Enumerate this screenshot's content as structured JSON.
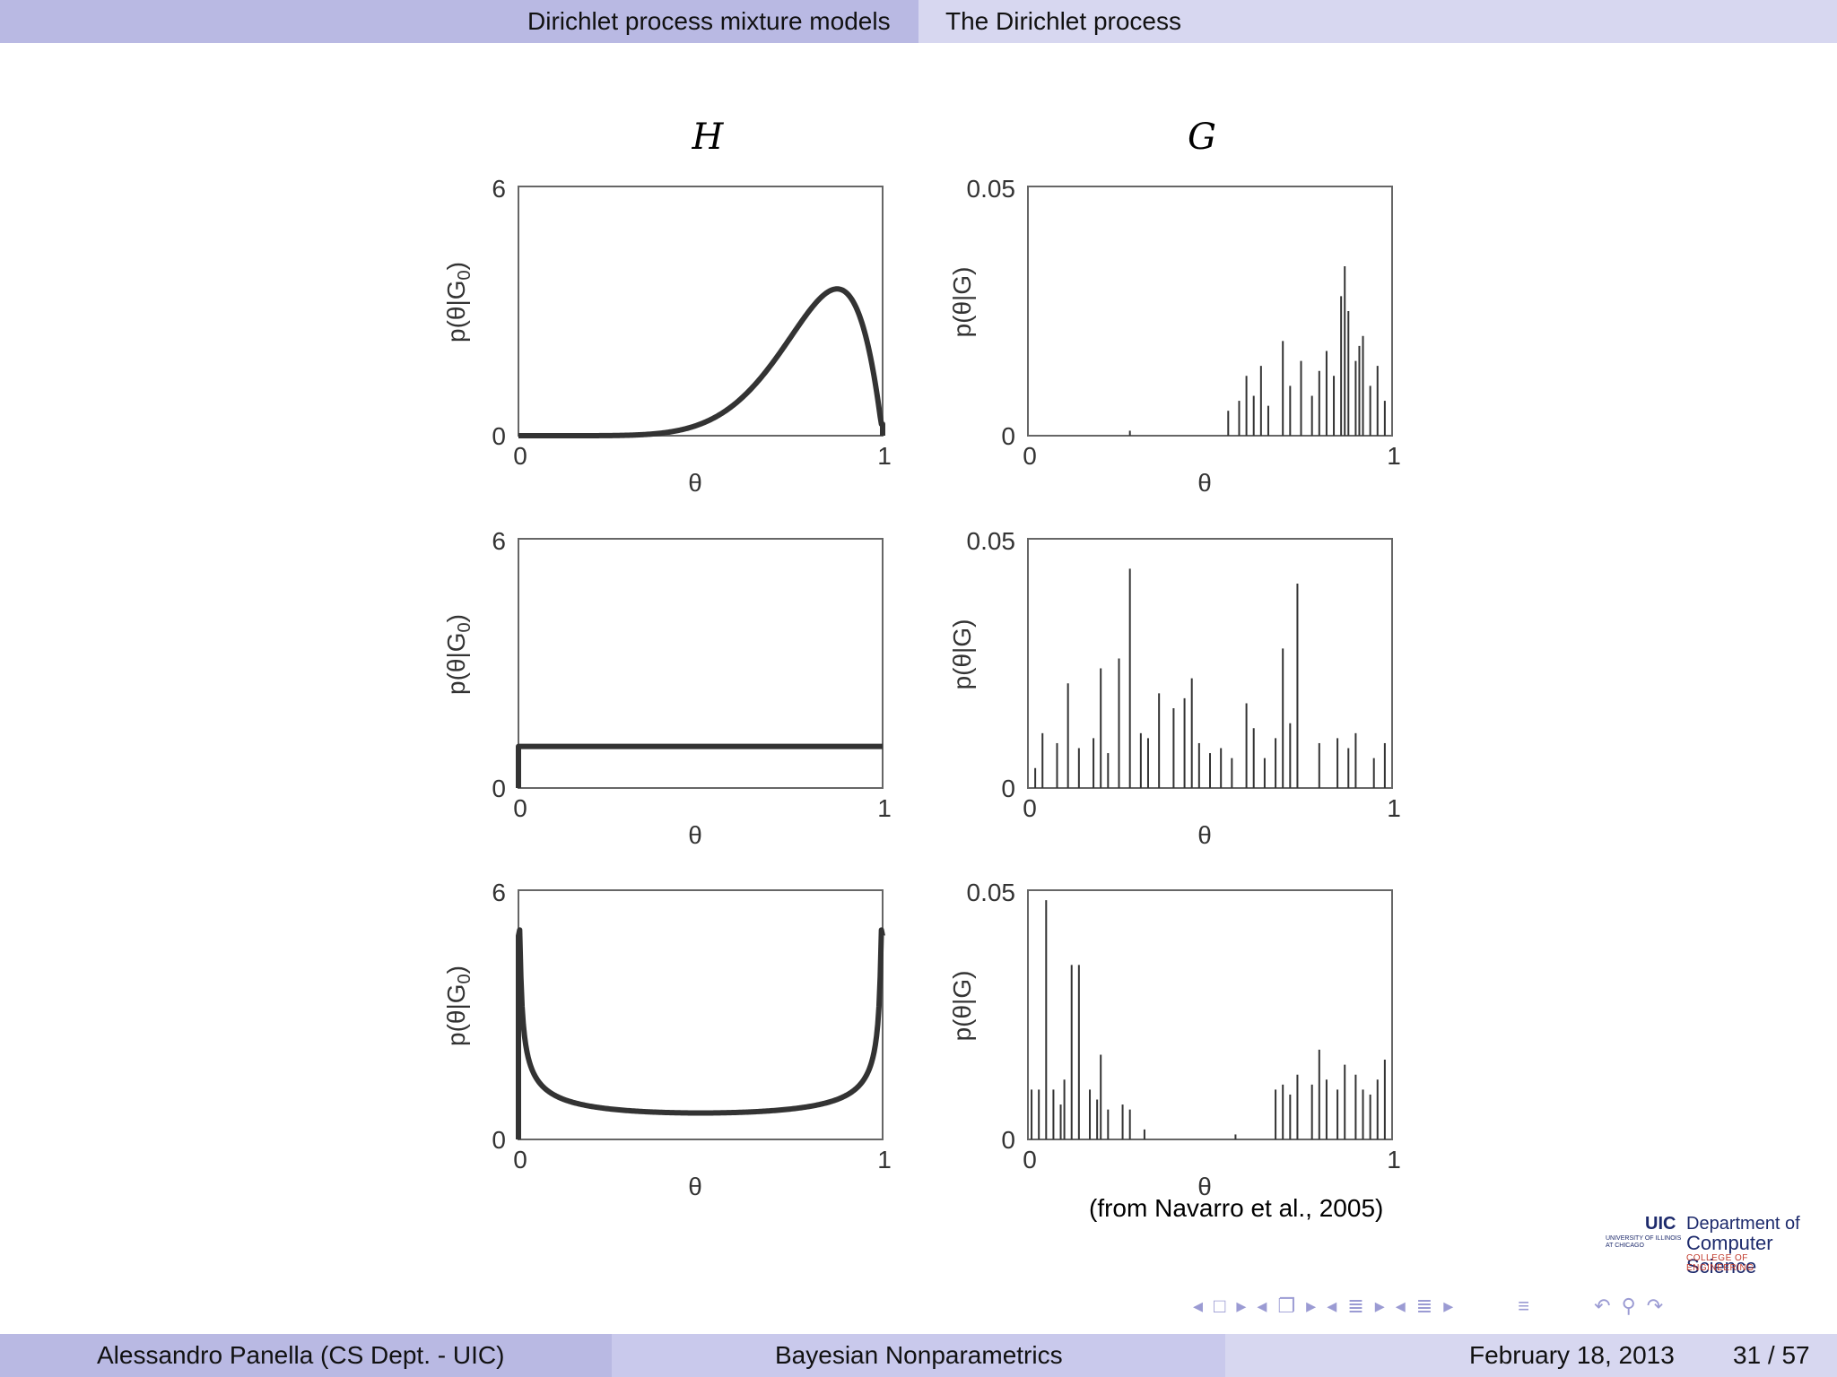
{
  "header": {
    "section": "Dirichlet process mixture models",
    "subsection": "The Dirichlet process"
  },
  "figure": {
    "col_titles": [
      "H",
      "G"
    ],
    "left_ylabel": "p(θ|G",
    "left_ylabel_sub": "0",
    "left_ylabel_close": ")",
    "right_ylabel": "p(θ|G)",
    "xlabel": "θ",
    "caption": "(from Navarro et al., 2005)"
  },
  "chart_data": [
    {
      "type": "line",
      "title": "",
      "xlabel": "θ",
      "ylabel": "p(θ|G0)",
      "xlim": [
        0,
        1
      ],
      "ylim": [
        0,
        6
      ],
      "xticks": [
        "0",
        "1"
      ],
      "yticks": [
        "0",
        "6"
      ],
      "series": [
        {
          "shape": "beta",
          "alpha": 8,
          "beta": 2
        }
      ]
    },
    {
      "type": "bar",
      "title": "",
      "xlabel": "θ",
      "ylabel": "p(θ|G)",
      "xlim": [
        0,
        1
      ],
      "ylim": [
        0,
        0.05
      ],
      "xticks": [
        "0",
        "1"
      ],
      "yticks": [
        "0",
        "0.05"
      ],
      "x": [
        0.28,
        0.55,
        0.58,
        0.6,
        0.62,
        0.64,
        0.66,
        0.7,
        0.72,
        0.75,
        0.78,
        0.8,
        0.82,
        0.84,
        0.86,
        0.87,
        0.88,
        0.9,
        0.91,
        0.92,
        0.94,
        0.96,
        0.98
      ],
      "values": [
        0.001,
        0.005,
        0.007,
        0.012,
        0.008,
        0.014,
        0.006,
        0.019,
        0.01,
        0.015,
        0.008,
        0.013,
        0.017,
        0.012,
        0.028,
        0.034,
        0.025,
        0.015,
        0.018,
        0.02,
        0.01,
        0.014,
        0.007
      ]
    },
    {
      "type": "line",
      "title": "",
      "xlabel": "θ",
      "ylabel": "p(θ|G0)",
      "xlim": [
        0,
        1
      ],
      "ylim": [
        0,
        6
      ],
      "xticks": [
        "0",
        "1"
      ],
      "yticks": [
        "0",
        "6"
      ],
      "series": [
        {
          "shape": "beta",
          "alpha": 1,
          "beta": 1
        }
      ]
    },
    {
      "type": "bar",
      "title": "",
      "xlabel": "θ",
      "ylabel": "p(θ|G)",
      "xlim": [
        0,
        1
      ],
      "ylim": [
        0,
        0.05
      ],
      "xticks": [
        "0",
        "1"
      ],
      "yticks": [
        "0",
        "0.05"
      ],
      "x": [
        0.02,
        0.04,
        0.08,
        0.11,
        0.14,
        0.18,
        0.2,
        0.22,
        0.25,
        0.28,
        0.31,
        0.33,
        0.36,
        0.4,
        0.43,
        0.45,
        0.47,
        0.5,
        0.53,
        0.56,
        0.6,
        0.62,
        0.65,
        0.68,
        0.7,
        0.72,
        0.74,
        0.8,
        0.85,
        0.88,
        0.9,
        0.95,
        0.98
      ],
      "values": [
        0.004,
        0.011,
        0.009,
        0.021,
        0.008,
        0.01,
        0.024,
        0.007,
        0.026,
        0.044,
        0.011,
        0.01,
        0.019,
        0.016,
        0.018,
        0.022,
        0.009,
        0.007,
        0.008,
        0.006,
        0.017,
        0.012,
        0.006,
        0.01,
        0.028,
        0.013,
        0.041,
        0.009,
        0.01,
        0.008,
        0.011,
        0.006,
        0.009
      ]
    },
    {
      "type": "line",
      "title": "",
      "xlabel": "θ",
      "ylabel": "p(θ|G0)",
      "xlim": [
        0,
        1
      ],
      "ylim": [
        0,
        6
      ],
      "xticks": [
        "0",
        "1"
      ],
      "yticks": [
        "0",
        "6"
      ],
      "series": [
        {
          "shape": "beta",
          "alpha": 0.5,
          "beta": 0.5
        }
      ]
    },
    {
      "type": "bar",
      "title": "",
      "xlabel": "θ",
      "ylabel": "p(θ|G)",
      "xlim": [
        0,
        1
      ],
      "ylim": [
        0,
        0.05
      ],
      "xticks": [
        "0",
        "1"
      ],
      "yticks": [
        "0",
        "0.05"
      ],
      "x": [
        0.01,
        0.03,
        0.05,
        0.07,
        0.09,
        0.1,
        0.12,
        0.14,
        0.17,
        0.19,
        0.2,
        0.22,
        0.26,
        0.28,
        0.32,
        0.57,
        0.68,
        0.7,
        0.72,
        0.74,
        0.78,
        0.8,
        0.82,
        0.85,
        0.87,
        0.9,
        0.92,
        0.94,
        0.96,
        0.98
      ],
      "values": [
        0.01,
        0.01,
        0.048,
        0.01,
        0.007,
        0.012,
        0.035,
        0.035,
        0.01,
        0.008,
        0.017,
        0.006,
        0.007,
        0.006,
        0.002,
        0.001,
        0.01,
        0.011,
        0.009,
        0.013,
        0.011,
        0.018,
        0.012,
        0.01,
        0.015,
        0.013,
        0.01,
        0.009,
        0.012,
        0.016
      ]
    }
  ],
  "footer": {
    "author": "Alessandro Panella  (CS Dept. - UIC)",
    "title": "Bayesian Nonparametrics",
    "date": "February 18, 2013",
    "page": "31 / 57"
  },
  "logo": {
    "uic": "UIC",
    "dept": "Department of",
    "cs": "Computer Science",
    "coe": "COLLEGE OF ENGINEERING",
    "uiuc": "UNIVERSITY OF ILLINOIS AT CHICAGO"
  },
  "nav_icons": [
    "arrow-left-icon",
    "frame-icon",
    "arrow-right-icon",
    "arrow-left-icon",
    "slides-icon",
    "arrow-right-icon",
    "arrow-left-icon",
    "section-icon",
    "arrow-right-icon",
    "arrow-left-icon",
    "subsection-icon",
    "arrow-right-icon",
    "align-icon",
    "undo-icon",
    "search-icon",
    "redo-icon"
  ]
}
